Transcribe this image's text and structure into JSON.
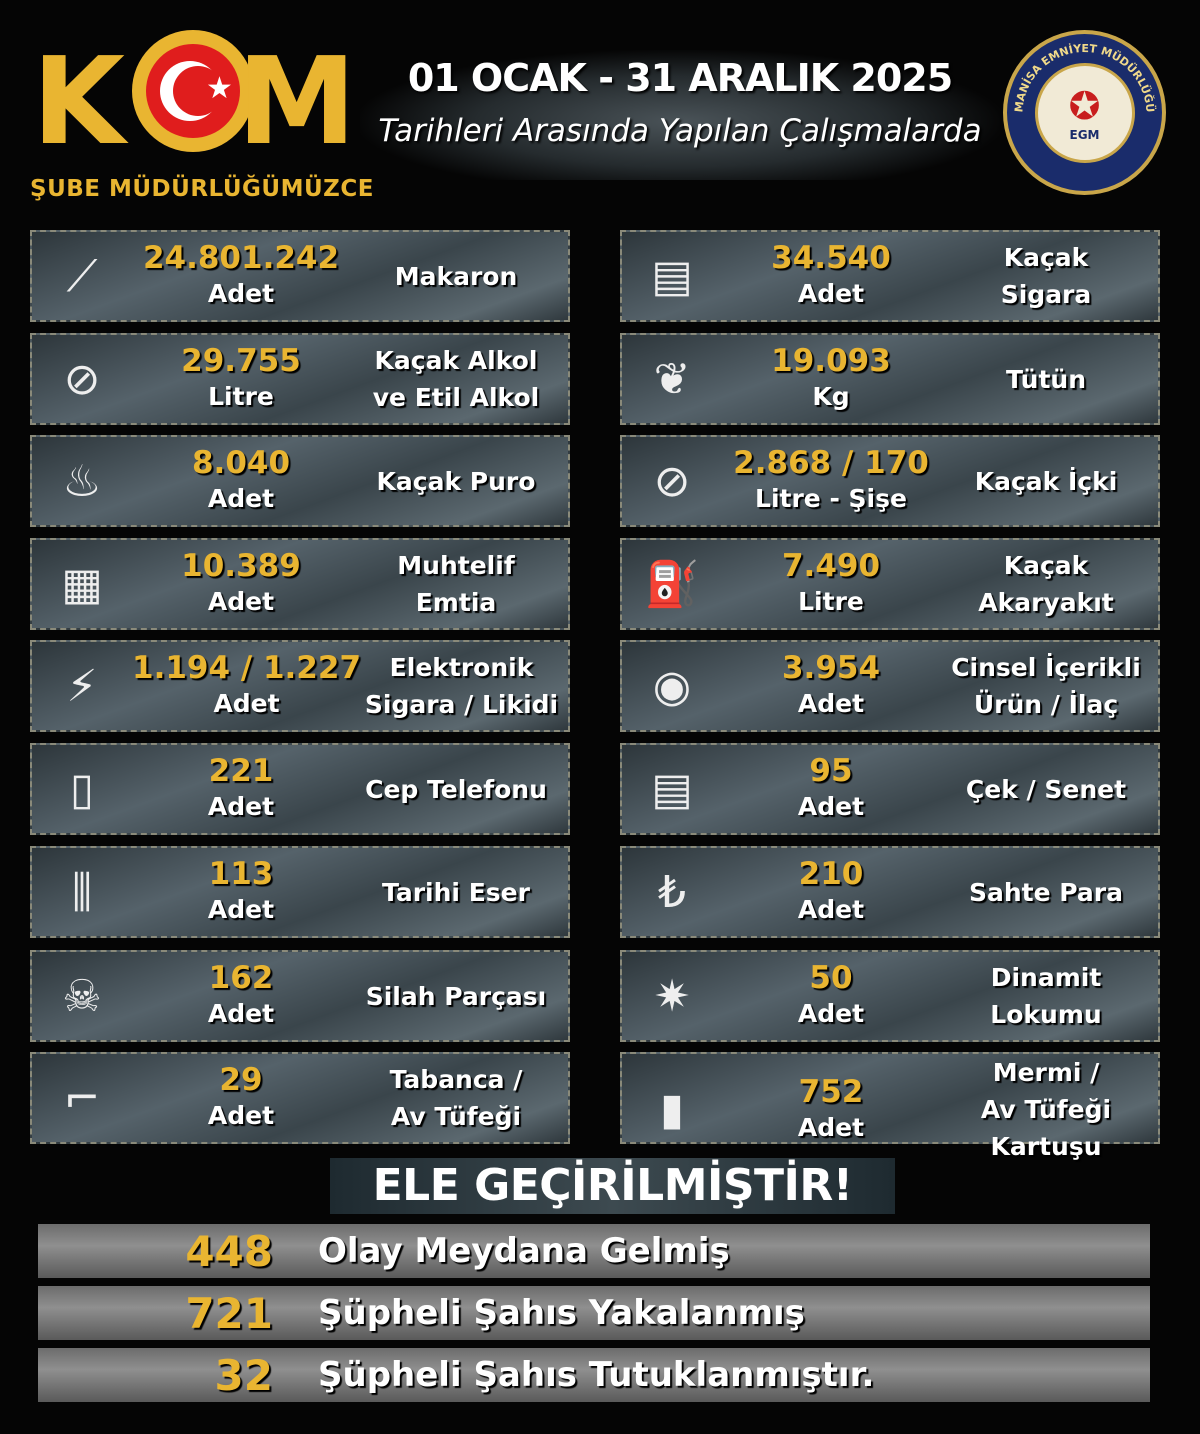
{
  "header": {
    "logo_text": "KOM",
    "logo_subtitle": "ŞUBE MÜDÜRLÜĞÜMÜZCE",
    "date_range": "01 OCAK  - 31 ARALIK 2025",
    "subtitle": "Tarihleri Arasında Yapılan Çalışmalarda",
    "badge_text": "MANİSA EMNİYET MÜDÜRLÜĞÜ",
    "badge_abbr": "EGM"
  },
  "accent_color": "#e9b531",
  "left_items": [
    {
      "icon": "cigarette-tubes-icon",
      "glyph": "⟋",
      "value": "24.801.242",
      "unit": "Adet",
      "label": "Makaron"
    },
    {
      "icon": "no-alcohol-icon",
      "glyph": "⊘",
      "value": "29.755",
      "unit": "Litre",
      "label": "Kaçak Alkol\nve Etil Alkol"
    },
    {
      "icon": "cigar-icon",
      "glyph": "♨",
      "value": "8.040",
      "unit": "Adet",
      "label": "Kaçak Puro"
    },
    {
      "icon": "goods-icon",
      "glyph": "▦",
      "value": "10.389",
      "unit": "Adet",
      "label": "Muhtelif\nEmtia"
    },
    {
      "icon": "e-cigarette-icon",
      "glyph": "⚡",
      "value": "1.194 / 1.227",
      "unit": "Adet",
      "label": "Elektronik\nSigara / Likidi"
    },
    {
      "icon": "phone-icon",
      "glyph": "▯",
      "value": "221",
      "unit": "Adet",
      "label": "Cep Telefonu"
    },
    {
      "icon": "column-icon",
      "glyph": "⫼",
      "value": "113",
      "unit": "Adet",
      "label": "Tarihi Eser"
    },
    {
      "icon": "gun-parts-icon",
      "glyph": "☠",
      "value": "162",
      "unit": "Adet",
      "label": "Silah Parçası"
    },
    {
      "icon": "rifle-pistol-icon",
      "glyph": "⌐",
      "value": "29",
      "unit": "Adet",
      "label": "Tabanca /\nAv Tüfeği"
    }
  ],
  "right_items": [
    {
      "icon": "cigarette-pack-icon",
      "glyph": "▤",
      "value": "34.540",
      "unit": "Adet",
      "label": "Kaçak\nSigara"
    },
    {
      "icon": "tobacco-leaf-icon",
      "glyph": "❦",
      "value": "19.093",
      "unit": "Kg",
      "label": "Tütün"
    },
    {
      "icon": "no-alcohol-icon",
      "glyph": "⊘",
      "value": "2.868 / 170",
      "unit": "Litre - Şişe",
      "label": "Kaçak İçki"
    },
    {
      "icon": "fuel-pump-icon",
      "glyph": "⛽",
      "value": "7.490",
      "unit": "Litre",
      "label": "Kaçak Akaryakıt"
    },
    {
      "icon": "pills-icon",
      "glyph": "◉",
      "value": "3.954",
      "unit": "Adet",
      "label": "Cinsel İçerikli\nÜrün / İlaç"
    },
    {
      "icon": "document-icon",
      "glyph": "▤",
      "value": "95",
      "unit": "Adet",
      "label": "Çek / Senet"
    },
    {
      "icon": "lira-icon",
      "glyph": "₺",
      "value": "210",
      "unit": "Adet",
      "label": "Sahte Para"
    },
    {
      "icon": "dynamite-icon",
      "glyph": "✷",
      "value": "50",
      "unit": "Adet",
      "label": "Dinamit Lokumu"
    },
    {
      "icon": "bullet-icon",
      "glyph": "▮",
      "value": "752",
      "unit": "Adet",
      "label": "Mermi /\nAv Tüfeği Kartuşu"
    }
  ],
  "seized_title": "ELE GEÇİRİLMİŞTİR!",
  "summary": [
    {
      "value": "448",
      "text": "Olay Meydana Gelmiş"
    },
    {
      "value": "721",
      "text": "Şüpheli Şahıs Yakalanmış"
    },
    {
      "value": "32",
      "text": "Şüpheli Şahıs Tutuklanmıştır."
    }
  ]
}
